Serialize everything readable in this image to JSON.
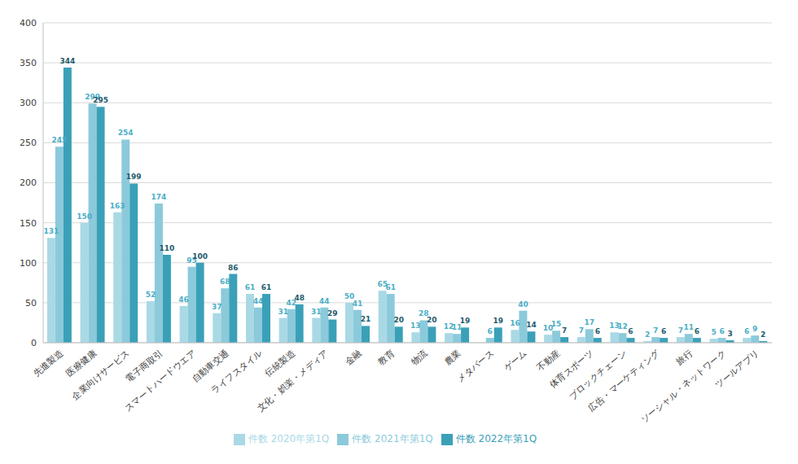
{
  "chart_data": {
    "type": "bar",
    "categories": [
      "先進製造",
      "医療健康",
      "企業向けサービス",
      "電子商取引",
      "スマートハードウエア",
      "自動車交通",
      "ライフスタイル",
      "伝統製造",
      "文化・娯楽・メディア",
      "金融",
      "教育",
      "物流",
      "農業",
      "メタバース",
      "ゲーム",
      "不動産",
      "体育スポーツ",
      "ブロックチェーン",
      "広告・マーケティング",
      "旅行",
      "ソーシャル・ネットワーク",
      "ツールアプリ"
    ],
    "series": [
      {
        "name": "件数 2020年第1Q",
        "color": "#a9d9e5",
        "values": [
          131,
          150,
          163,
          52,
          46,
          37,
          61,
          31,
          31,
          50,
          65,
          13,
          12,
          0,
          16,
          10,
          7,
          13,
          2,
          7,
          5,
          6
        ]
      },
      {
        "name": "件数 2021年第1Q",
        "color": "#8bcadb",
        "values": [
          245,
          299,
          254,
          174,
          95,
          68,
          44,
          42,
          44,
          41,
          61,
          28,
          11,
          6,
          40,
          15,
          17,
          12,
          7,
          11,
          6,
          9
        ]
      },
      {
        "name": "件数 2022年第1Q",
        "color": "#3aa0b8",
        "values": [
          344,
          295,
          199,
          110,
          100,
          86,
          61,
          48,
          29,
          21,
          20,
          20,
          19,
          19,
          14,
          7,
          6,
          6,
          6,
          6,
          3,
          2
        ]
      }
    ],
    "ylim": [
      0,
      400
    ],
    "yticks": [
      0,
      50,
      100,
      150,
      200,
      250,
      300,
      350,
      400
    ],
    "grid": true,
    "legend": "bottom",
    "data_labels": true
  }
}
